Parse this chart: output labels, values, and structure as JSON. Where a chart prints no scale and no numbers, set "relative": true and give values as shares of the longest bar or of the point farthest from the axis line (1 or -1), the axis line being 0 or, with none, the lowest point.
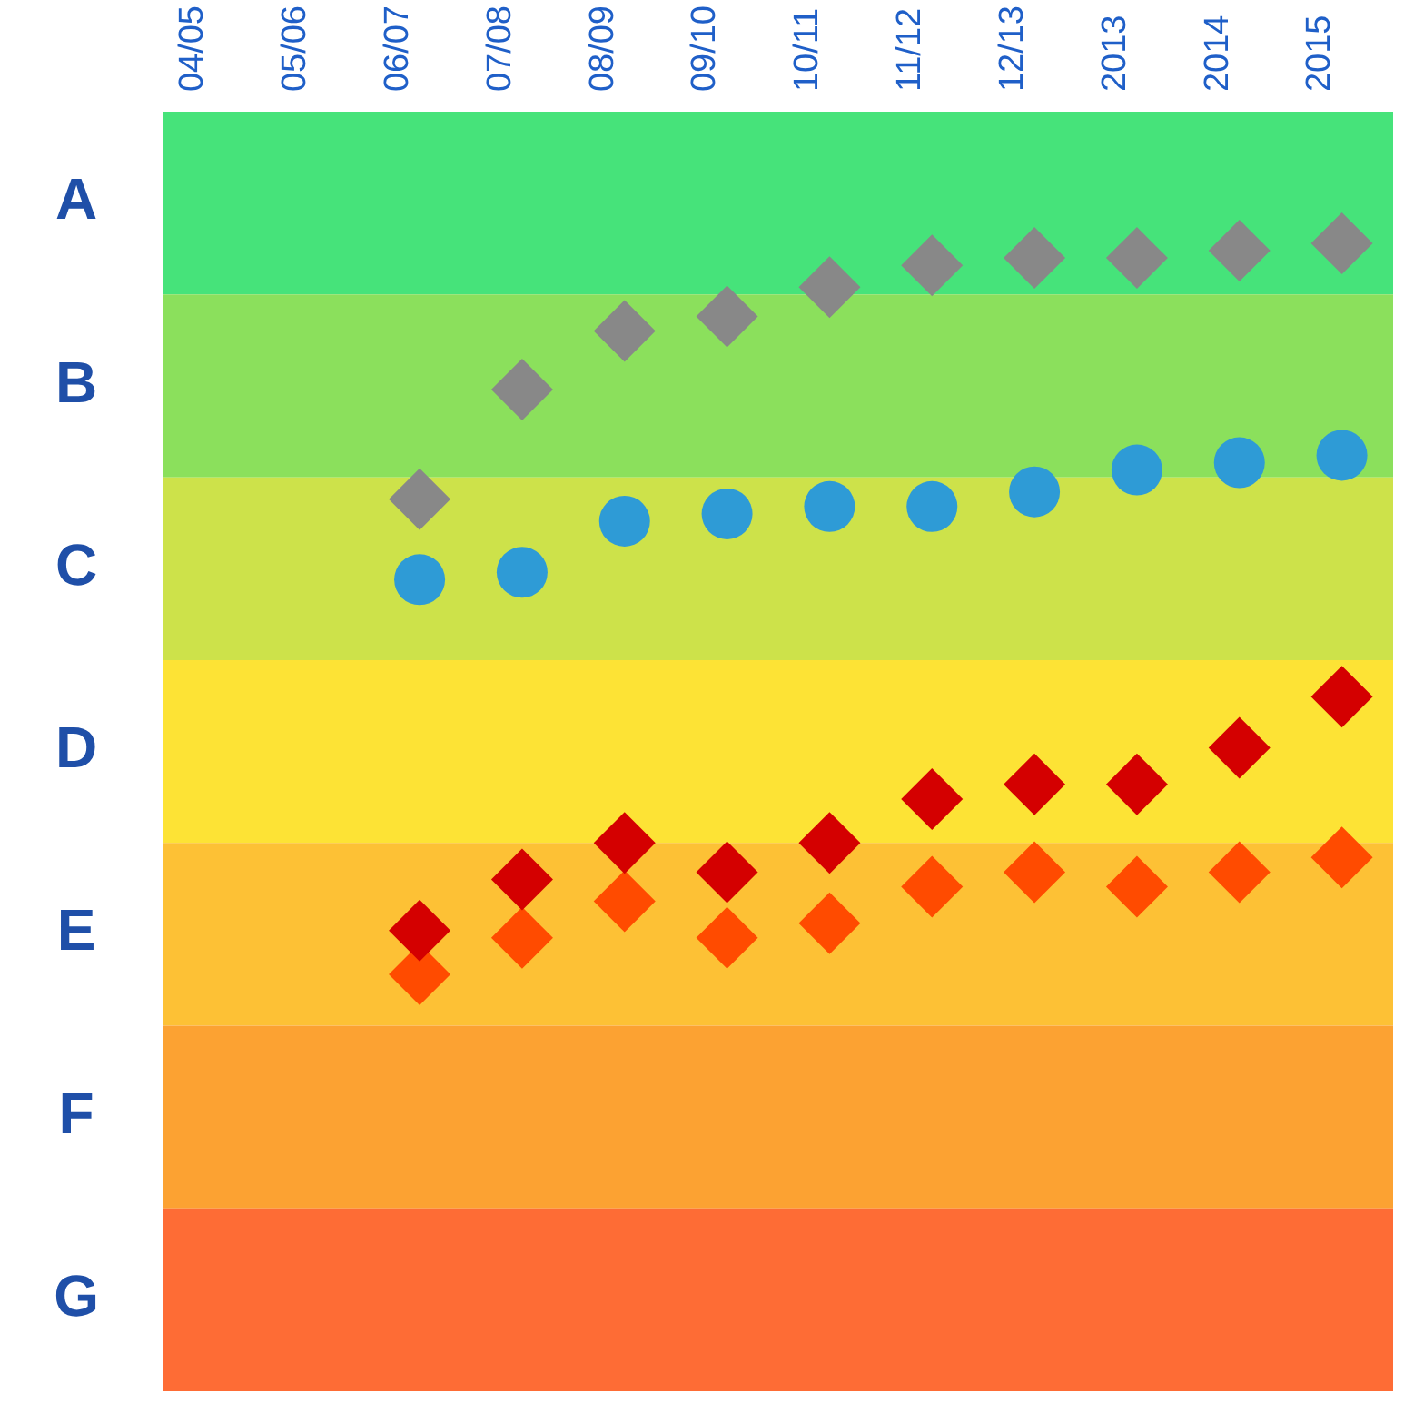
{
  "chart_data": {
    "type": "scatter",
    "categories": [
      "04/05",
      "05/06",
      "06/07",
      "07/08",
      "08/09",
      "09/10",
      "10/11",
      "11/12",
      "12/13",
      "2013",
      "2014",
      "2015"
    ],
    "relative": true,
    "bands": [
      {
        "axis": "y",
        "from": 0.93,
        "to": 1.18,
        "color": "#46e37a",
        "label": "A"
      },
      {
        "axis": "y",
        "from": 0.68,
        "to": 0.93,
        "color": "#8be05c",
        "label": "B"
      },
      {
        "axis": "y",
        "from": 0.43,
        "to": 0.68,
        "color": "#cde24a",
        "label": "C"
      },
      {
        "axis": "y",
        "from": 0.18,
        "to": 0.43,
        "color": "#fde335",
        "label": "D"
      },
      {
        "axis": "y",
        "from": -0.07,
        "to": 0.18,
        "color": "#fdc135",
        "label": "E"
      },
      {
        "axis": "y",
        "from": -0.32,
        "to": -0.07,
        "color": "#fca232",
        "label": "F"
      },
      {
        "axis": "y",
        "from": -0.57,
        "to": -0.32,
        "color": "#fe6c35",
        "label": "G"
      }
    ],
    "series": [
      {
        "color": "#888888",
        "marker": "diamond",
        "values": [
          null,
          null,
          0.65,
          0.8,
          0.88,
          0.9,
          0.94,
          0.97,
          0.98,
          0.98,
          0.99,
          1
        ]
      },
      {
        "color": "#2e9bd6",
        "marker": "circle",
        "values": [
          null,
          null,
          0.54,
          0.55,
          0.62,
          0.63,
          0.64,
          0.64,
          0.66,
          0.69,
          0.7,
          0.71
        ]
      },
      {
        "color": "#d40000",
        "marker": "diamond",
        "values": [
          null,
          null,
          0.06,
          0.13,
          0.18,
          0.14,
          0.18,
          0.24,
          0.26,
          0.26,
          0.31,
          0.38
        ]
      },
      {
        "color": "#ff4b00",
        "marker": "diamond",
        "values": [
          null,
          null,
          0,
          0.05,
          0.1,
          0.05,
          0.07,
          0.12,
          0.14,
          0.12,
          0.14,
          0.16
        ]
      }
    ],
    "grid": false,
    "legend": false
  }
}
